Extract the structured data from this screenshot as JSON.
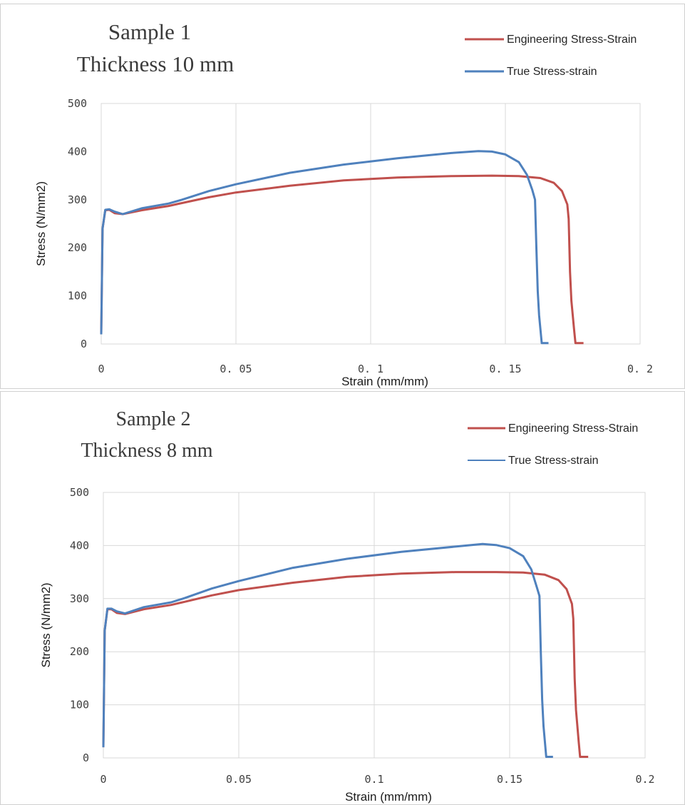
{
  "chart_data": [
    {
      "type": "line",
      "title": "Sample 1",
      "subtitle": "Thickness 10 mm",
      "xlabel": "Strain (mm/mm)",
      "ylabel": "Stress (N/mm2)",
      "xlim": [
        0,
        0.2
      ],
      "ylim": [
        0,
        500
      ],
      "x_ticks": [
        "0",
        "0. 05",
        "0. 1",
        "0. 15",
        "0. 2"
      ],
      "y_ticks": [
        "0",
        "100",
        "200",
        "300",
        "400",
        "500"
      ],
      "grid": "vertical",
      "legend_position": "top-right",
      "series": [
        {
          "name": "Engineering Stress-Strain",
          "color": "#c0504d",
          "points": [
            [
              0,
              20
            ],
            [
              0.0005,
              240
            ],
            [
              0.0015,
              278
            ],
            [
              0.003,
              279
            ],
            [
              0.005,
              272
            ],
            [
              0.008,
              270
            ],
            [
              0.015,
              278
            ],
            [
              0.025,
              287
            ],
            [
              0.03,
              293
            ],
            [
              0.04,
              305
            ],
            [
              0.05,
              315
            ],
            [
              0.07,
              329
            ],
            [
              0.09,
              340
            ],
            [
              0.11,
              346
            ],
            [
              0.13,
              349
            ],
            [
              0.145,
              350
            ],
            [
              0.155,
              349
            ],
            [
              0.163,
              345
            ],
            [
              0.168,
              335
            ],
            [
              0.171,
              318
            ],
            [
              0.173,
              290
            ],
            [
              0.1735,
              260
            ],
            [
              0.174,
              150
            ],
            [
              0.1745,
              90
            ],
            [
              0.1755,
              30
            ],
            [
              0.176,
              2
            ],
            [
              0.179,
              2
            ]
          ]
        },
        {
          "name": "True Stress-strain",
          "color": "#4f81bd",
          "points": [
            [
              0,
              20
            ],
            [
              0.0005,
              240
            ],
            [
              0.0015,
              279
            ],
            [
              0.003,
              280
            ],
            [
              0.005,
              275
            ],
            [
              0.008,
              270
            ],
            [
              0.015,
              282
            ],
            [
              0.025,
              292
            ],
            [
              0.03,
              300
            ],
            [
              0.04,
              318
            ],
            [
              0.05,
              332
            ],
            [
              0.07,
              356
            ],
            [
              0.09,
              373
            ],
            [
              0.11,
              386
            ],
            [
              0.13,
              397
            ],
            [
              0.14,
              401
            ],
            [
              0.145,
              400
            ],
            [
              0.15,
              394
            ],
            [
              0.155,
              378
            ],
            [
              0.158,
              352
            ],
            [
              0.16,
              320
            ],
            [
              0.161,
              300
            ],
            [
              0.1615,
              200
            ],
            [
              0.162,
              110
            ],
            [
              0.1625,
              60
            ],
            [
              0.1635,
              2
            ],
            [
              0.166,
              2
            ]
          ]
        }
      ]
    },
    {
      "type": "line",
      "title": "Sample 2",
      "subtitle": "Thickness 8 mm",
      "xlabel": "Strain (mm/mm)",
      "ylabel": "Stress (N/mm2)",
      "xlim": [
        0,
        0.2
      ],
      "ylim": [
        0,
        500
      ],
      "x_ticks": [
        "0",
        "0.05",
        "0.1",
        "0.15",
        "0.2"
      ],
      "y_ticks": [
        "0",
        "100",
        "200",
        "300",
        "400",
        "500"
      ],
      "grid": "both",
      "legend_position": "top-right",
      "series": [
        {
          "name": "Engineering Stress-Strain",
          "color": "#c0504d",
          "points": [
            [
              0,
              20
            ],
            [
              0.0005,
              240
            ],
            [
              0.0015,
              280
            ],
            [
              0.003,
              280
            ],
            [
              0.005,
              273
            ],
            [
              0.008,
              271
            ],
            [
              0.015,
              280
            ],
            [
              0.025,
              288
            ],
            [
              0.03,
              294
            ],
            [
              0.04,
              306
            ],
            [
              0.05,
              316
            ],
            [
              0.07,
              330
            ],
            [
              0.09,
              341
            ],
            [
              0.11,
              347
            ],
            [
              0.13,
              350
            ],
            [
              0.145,
              350
            ],
            [
              0.155,
              349
            ],
            [
              0.163,
              345
            ],
            [
              0.168,
              335
            ],
            [
              0.171,
              318
            ],
            [
              0.173,
              290
            ],
            [
              0.1735,
              262
            ],
            [
              0.174,
              150
            ],
            [
              0.1745,
              90
            ],
            [
              0.1755,
              30
            ],
            [
              0.176,
              2
            ],
            [
              0.179,
              2
            ]
          ]
        },
        {
          "name": "True Stress-strain",
          "color": "#4f81bd",
          "points": [
            [
              0,
              20
            ],
            [
              0.0005,
              240
            ],
            [
              0.0015,
              281
            ],
            [
              0.003,
              281
            ],
            [
              0.005,
              276
            ],
            [
              0.008,
              272
            ],
            [
              0.015,
              284
            ],
            [
              0.025,
              293
            ],
            [
              0.03,
              301
            ],
            [
              0.04,
              319
            ],
            [
              0.05,
              333
            ],
            [
              0.07,
              358
            ],
            [
              0.09,
              375
            ],
            [
              0.11,
              388
            ],
            [
              0.13,
              398
            ],
            [
              0.14,
              403
            ],
            [
              0.145,
              401
            ],
            [
              0.15,
              395
            ],
            [
              0.155,
              380
            ],
            [
              0.158,
              355
            ],
            [
              0.16,
              322
            ],
            [
              0.161,
              305
            ],
            [
              0.1615,
              200
            ],
            [
              0.162,
              110
            ],
            [
              0.1625,
              60
            ],
            [
              0.1635,
              2
            ],
            [
              0.166,
              2
            ]
          ]
        }
      ]
    }
  ]
}
